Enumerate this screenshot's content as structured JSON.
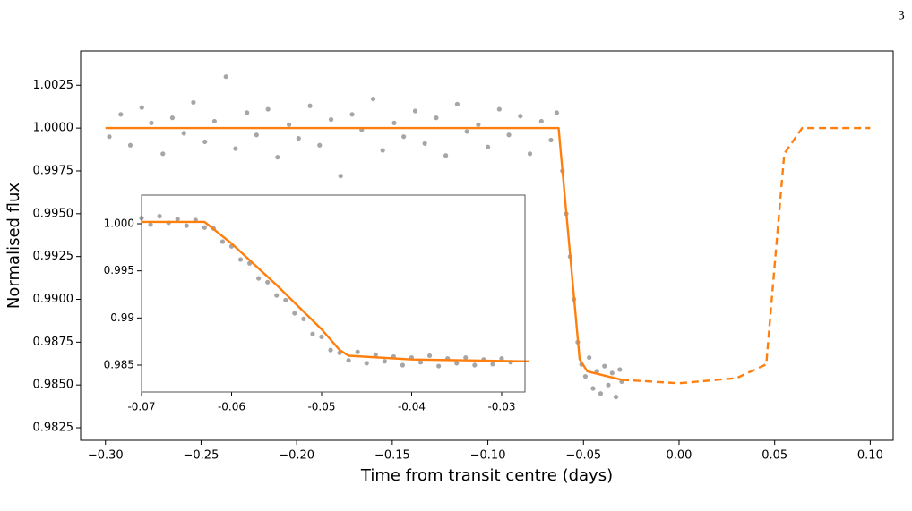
{
  "page_number": "3",
  "chart_data": [
    {
      "type": "scatter",
      "x_label": "Time from transit centre (days)",
      "y_label": "Normalised flux",
      "xlim": [
        -0.313,
        0.112
      ],
      "ylim": [
        0.98177,
        1.0045
      ],
      "xticks": [
        {
          "value": -0.3,
          "label": "−0.30"
        },
        {
          "value": -0.25,
          "label": "−0.25"
        },
        {
          "value": -0.2,
          "label": "−0.20"
        },
        {
          "value": -0.15,
          "label": "−0.15"
        },
        {
          "value": -0.1,
          "label": "−0.10"
        },
        {
          "value": -0.05,
          "label": "−0.05"
        },
        {
          "value": 0,
          "label": "0.00"
        },
        {
          "value": 0.05,
          "label": "0.05"
        },
        {
          "value": 0.1,
          "label": "0.10"
        }
      ],
      "yticks": [
        0.9825,
        {
          "value": 0.985,
          "label": "0.9850"
        },
        0.9875,
        {
          "value": 0.99,
          "label": "0.9900"
        },
        0.9925,
        {
          "value": 0.995,
          "label": "0.9950"
        },
        0.9975,
        {
          "value": 1,
          "label": "1.0000"
        },
        1.0025
      ],
      "series": [
        {
          "type": "scatter",
          "color": "#000000",
          "x": [
            -0.298,
            -0.292,
            -0.287,
            -0.281,
            -0.276,
            -0.27,
            -0.265,
            -0.259,
            -0.254,
            -0.248,
            -0.243,
            -0.237,
            -0.232,
            -0.226,
            -0.221,
            -0.215,
            -0.21,
            -0.204,
            -0.199,
            -0.193,
            -0.188,
            -0.182,
            -0.177,
            -0.171,
            -0.166,
            -0.16,
            -0.155,
            -0.149,
            -0.144,
            -0.138,
            -0.133,
            -0.127,
            -0.122,
            -0.116,
            -0.111,
            -0.105,
            -0.1,
            -0.094,
            -0.089,
            -0.083,
            -0.078,
            -0.072,
            -0.067,
            -0.064,
            -0.061,
            -0.059,
            -0.057,
            -0.055,
            -0.053,
            -0.051,
            -0.049,
            -0.047,
            -0.045,
            -0.043,
            -0.041,
            -0.039,
            -0.037,
            -0.035,
            -0.033,
            -0.031,
            -0.03
          ],
          "values": [
            0.9995,
            1.0008,
            0.999,
            1.0012,
            1.0003,
            0.9985,
            1.0006,
            0.9997,
            1.0015,
            0.9992,
            1.0004,
            1.003,
            0.9988,
            1.0009,
            0.9996,
            1.0011,
            0.9983,
            1.0002,
            0.9994,
            1.0013,
            0.999,
            1.0005,
            0.9972,
            1.0008,
            0.9999,
            1.0017,
            0.9987,
            1.0003,
            0.9995,
            1.001,
            0.9991,
            1.0006,
            0.9984,
            1.0014,
            0.9998,
            1.0002,
            0.9989,
            1.0011,
            0.9996,
            1.0007,
            0.9985,
            1.0004,
            0.9993,
            1.0009,
            0.9975,
            0.995,
            0.9925,
            0.99,
            0.9875,
            0.9862,
            0.9855,
            0.9866,
            0.9848,
            0.9858,
            0.9845,
            0.9861,
            0.985,
            0.9857,
            0.9843,
            0.9859,
            0.9852
          ]
        },
        {
          "type": "line",
          "color": "#ff7f0e",
          "style": "solid",
          "x": [
            -0.3,
            -0.063,
            -0.052,
            -0.048,
            -0.03
          ],
          "values": [
            1,
            1,
            0.9865,
            0.9858,
            0.9853
          ]
        },
        {
          "type": "line",
          "color": "#ff7f0e",
          "style": "dashed",
          "x": [
            -0.03,
            0,
            0.03,
            0.0456,
            0.05,
            0.055,
            0.0644,
            0.1
          ],
          "values": [
            0.9853,
            0.9851,
            0.9854,
            0.9862,
            0.992,
            0.9985,
            1,
            1
          ]
        }
      ]
    },
    {
      "type": "scatter",
      "xlim": [
        -0.07,
        -0.02741
      ],
      "ylim": [
        0.98215,
        1.00304
      ],
      "xticks": [
        -0.07,
        -0.06,
        -0.05,
        -0.04,
        -0.03
      ],
      "yticks": [
        0.985,
        0.99,
        0.995,
        {
          "value": 1,
          "label": "1.000"
        }
      ],
      "series": [
        {
          "type": "scatter",
          "color": "#000000",
          "x": [
            -0.07,
            -0.069,
            -0.068,
            -0.067,
            -0.066,
            -0.065,
            -0.064,
            -0.063,
            -0.062,
            -0.061,
            -0.06,
            -0.059,
            -0.058,
            -0.057,
            -0.056,
            -0.055,
            -0.054,
            -0.053,
            -0.052,
            -0.051,
            -0.05,
            -0.049,
            -0.048,
            -0.047,
            -0.046,
            -0.045,
            -0.044,
            -0.043,
            -0.042,
            -0.041,
            -0.04,
            -0.039,
            -0.038,
            -0.037,
            -0.036,
            -0.035,
            -0.034,
            -0.033,
            -0.032,
            -0.031,
            -0.03,
            -0.029
          ],
          "values": [
            1.0006,
            0.9999,
            1.0008,
            1.0001,
            1.0005,
            0.9998,
            1.0004,
            0.9996,
            0.9995,
            0.9981,
            0.9976,
            0.9962,
            0.9958,
            0.9942,
            0.9938,
            0.9924,
            0.9919,
            0.9905,
            0.9899,
            0.9883,
            0.988,
            0.9866,
            0.9863,
            0.9855,
            0.9864,
            0.9852,
            0.9861,
            0.9854,
            0.9859,
            0.985,
            0.9858,
            0.9853,
            0.986,
            0.9849,
            0.9857,
            0.9852,
            0.9858,
            0.985,
            0.9856,
            0.9851,
            0.9857,
            0.9853
          ]
        },
        {
          "type": "line",
          "color": "#ff7f0e",
          "style": "solid",
          "x": [
            -0.07,
            -0.063,
            -0.06,
            -0.055,
            -0.05,
            -0.048,
            -0.047,
            -0.04,
            -0.027
          ],
          "values": [
            1.0002,
            1.0002,
            0.9979,
            0.9935,
            0.9888,
            0.9866,
            0.986,
            0.9856,
            0.9854
          ]
        }
      ]
    }
  ]
}
